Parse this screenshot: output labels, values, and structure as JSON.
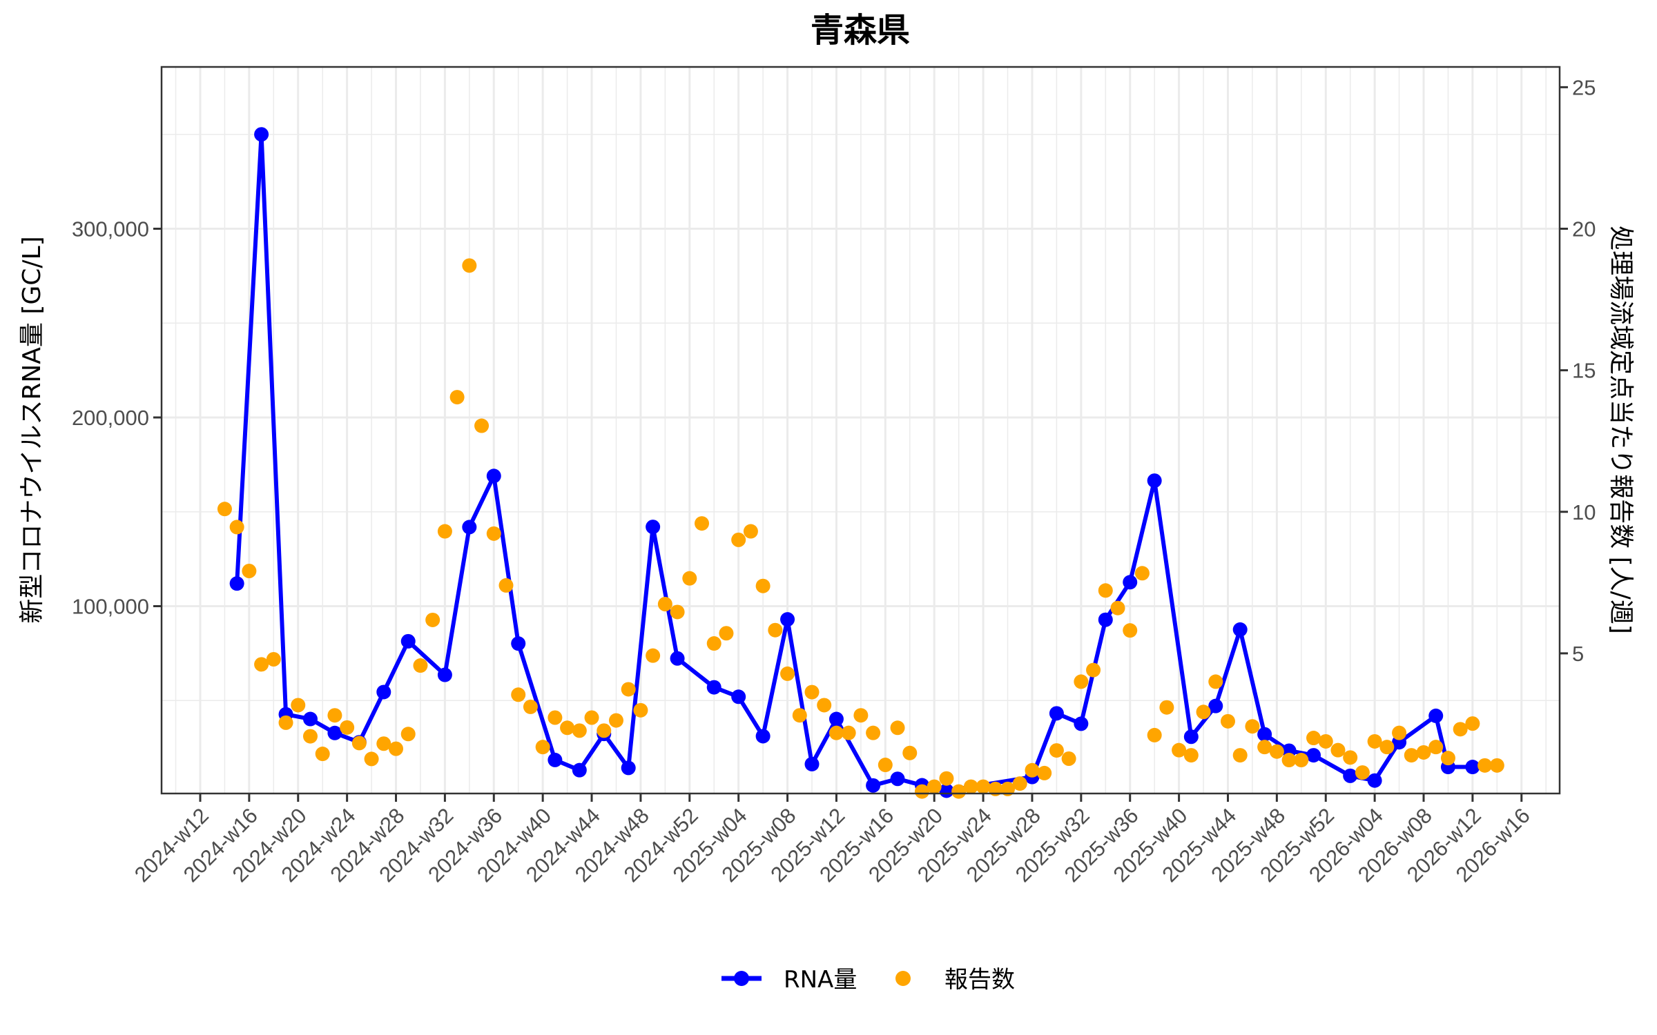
{
  "chart_data": {
    "type": "line",
    "title": "青森県",
    "xlabel": "",
    "ylabel": "新型コロナウイルスRNA量 [GC/L]",
    "ylabel_right": "処理場流域定点当たり報告数 [人/週]",
    "x_tick_labels": [
      "2024-w12",
      "2024-w16",
      "2024-w20",
      "2024-w24",
      "2024-w28",
      "2024-w32",
      "2024-w36",
      "2024-w40",
      "2024-w44",
      "2024-w48",
      "2024-w52",
      "2025-w04",
      "2025-w08",
      "2025-w12",
      "2025-w16",
      "2025-w20",
      "2025-w24",
      "2025-w28",
      "2025-w32",
      "2025-w36",
      "2025-w40",
      "2025-w44",
      "2025-w48",
      "2025-w52",
      "2026-w04",
      "2026-w08",
      "2026-w12",
      "2026-w16"
    ],
    "y_left_ticks": [
      {
        "value": 100000,
        "label": "100,000"
      },
      {
        "value": 200000,
        "label": "200,000"
      },
      {
        "value": 300000,
        "label": "300,000"
      }
    ],
    "y_right_ticks": [
      {
        "value": 5,
        "label": "5"
      },
      {
        "value": 10,
        "label": "10"
      },
      {
        "value": 15,
        "label": "15"
      },
      {
        "value": 20,
        "label": "20"
      },
      {
        "value": 25,
        "label": "25"
      }
    ],
    "secondary_axis_scale": 15000,
    "ylim_left": [
      0,
      385000
    ],
    "ylim_right": [
      0,
      25.7
    ],
    "grid": true,
    "legend_position": "bottom",
    "series": [
      {
        "name": "RNA量",
        "axis": "left",
        "type": "line+points",
        "color": "#0000FF",
        "points": [
          {
            "week": "2024-w15",
            "value": 112000
          },
          {
            "week": "2024-w17",
            "value": 350000
          },
          {
            "week": "2024-w19",
            "value": 42700
          },
          {
            "week": "2024-w21",
            "value": 40200
          },
          {
            "week": "2024-w23",
            "value": 32800
          },
          {
            "week": "2024-w25",
            "value": 27900
          },
          {
            "week": "2024-w27",
            "value": 54500
          },
          {
            "week": "2024-w29",
            "value": 81400
          },
          {
            "week": "2024-w32",
            "value": 63600
          },
          {
            "week": "2024-w34",
            "value": 141900
          },
          {
            "week": "2024-w36",
            "value": 169000
          },
          {
            "week": "2024-w38",
            "value": 80200
          },
          {
            "week": "2024-w41",
            "value": 18500
          },
          {
            "week": "2024-w43",
            "value": 13100
          },
          {
            "week": "2024-w45",
            "value": 32300
          },
          {
            "week": "2024-w47",
            "value": 14300
          },
          {
            "week": "2024-w49",
            "value": 142000
          },
          {
            "week": "2024-w51",
            "value": 72300
          },
          {
            "week": "2025-w02",
            "value": 57000
          },
          {
            "week": "2025-w04",
            "value": 52000
          },
          {
            "week": "2025-w06",
            "value": 31100
          },
          {
            "week": "2025-w08",
            "value": 93000
          },
          {
            "week": "2025-w10",
            "value": 16300
          },
          {
            "week": "2025-w12",
            "value": 40200
          },
          {
            "week": "2025-w15",
            "value": 5000
          },
          {
            "week": "2025-w17",
            "value": 8500
          },
          {
            "week": "2025-w19",
            "value": 5100
          },
          {
            "week": "2025-w21",
            "value": 2200
          },
          {
            "week": "2025-w28",
            "value": 9500
          },
          {
            "week": "2025-w30",
            "value": 43200
          },
          {
            "week": "2025-w32",
            "value": 37700
          },
          {
            "week": "2025-w34",
            "value": 92800
          },
          {
            "week": "2025-w36",
            "value": 112700
          },
          {
            "week": "2025-w38",
            "value": 166500
          },
          {
            "week": "2025-w41",
            "value": 30800
          },
          {
            "week": "2025-w43",
            "value": 47100
          },
          {
            "week": "2025-w45",
            "value": 87600
          },
          {
            "week": "2025-w47",
            "value": 32100
          },
          {
            "week": "2025-w49",
            "value": 23400
          },
          {
            "week": "2025-w51",
            "value": 21000
          },
          {
            "week": "2026-w02",
            "value": 10100
          },
          {
            "week": "2026-w04",
            "value": 7600
          },
          {
            "week": "2026-w06",
            "value": 27900
          },
          {
            "week": "2026-w09",
            "value": 41900
          },
          {
            "week": "2026-w10",
            "value": 14800
          },
          {
            "week": "2026-w12",
            "value": 14800
          }
        ]
      },
      {
        "name": "報告数",
        "axis": "right",
        "type": "points",
        "color": "#FFA500",
        "points": [
          {
            "week": "2024-w14",
            "value": 10.1
          },
          {
            "week": "2024-w15",
            "value": 9.46
          },
          {
            "week": "2024-w16",
            "value": 7.91
          },
          {
            "week": "2024-w17",
            "value": 4.61
          },
          {
            "week": "2024-w18",
            "value": 4.79
          },
          {
            "week": "2024-w19",
            "value": 2.55
          },
          {
            "week": "2024-w20",
            "value": 3.17
          },
          {
            "week": "2024-w21",
            "value": 2.07
          },
          {
            "week": "2024-w22",
            "value": 1.45
          },
          {
            "week": "2024-w23",
            "value": 2.81
          },
          {
            "week": "2024-w24",
            "value": 2.38
          },
          {
            "week": "2024-w25",
            "value": 1.83
          },
          {
            "week": "2024-w26",
            "value": 1.27
          },
          {
            "week": "2024-w27",
            "value": 1.81
          },
          {
            "week": "2024-w28",
            "value": 1.63
          },
          {
            "week": "2024-w29",
            "value": 2.15
          },
          {
            "week": "2024-w30",
            "value": 4.57
          },
          {
            "week": "2024-w31",
            "value": 6.18
          },
          {
            "week": "2024-w32",
            "value": 9.31
          },
          {
            "week": "2024-w33",
            "value": 14.05
          },
          {
            "week": "2024-w34",
            "value": 18.7
          },
          {
            "week": "2024-w35",
            "value": 13.04
          },
          {
            "week": "2024-w36",
            "value": 9.23
          },
          {
            "week": "2024-w37",
            "value": 7.4
          },
          {
            "week": "2024-w38",
            "value": 3.54
          },
          {
            "week": "2024-w39",
            "value": 3.11
          },
          {
            "week": "2024-w40",
            "value": 1.69
          },
          {
            "week": "2024-w41",
            "value": 2.73
          },
          {
            "week": "2024-w42",
            "value": 2.37
          },
          {
            "week": "2024-w43",
            "value": 2.27
          },
          {
            "week": "2024-w44",
            "value": 2.73
          },
          {
            "week": "2024-w45",
            "value": 2.27
          },
          {
            "week": "2024-w46",
            "value": 2.63
          },
          {
            "week": "2024-w47",
            "value": 3.73
          },
          {
            "week": "2024-w48",
            "value": 2.99
          },
          {
            "week": "2024-w49",
            "value": 4.92
          },
          {
            "week": "2024-w50",
            "value": 6.74
          },
          {
            "week": "2024-w51",
            "value": 6.46
          },
          {
            "week": "2024-w52",
            "value": 7.65
          },
          {
            "week": "2025-w01",
            "value": 9.59
          },
          {
            "week": "2025-w02",
            "value": 5.35
          },
          {
            "week": "2025-w03",
            "value": 5.71
          },
          {
            "week": "2025-w04",
            "value": 9.01
          },
          {
            "week": "2025-w05",
            "value": 9.31
          },
          {
            "week": "2025-w06",
            "value": 7.38
          },
          {
            "week": "2025-w07",
            "value": 5.82
          },
          {
            "week": "2025-w08",
            "value": 4.28
          },
          {
            "week": "2025-w09",
            "value": 2.81
          },
          {
            "week": "2025-w10",
            "value": 3.63
          },
          {
            "week": "2025-w11",
            "value": 3.17
          },
          {
            "week": "2025-w12",
            "value": 2.19
          },
          {
            "week": "2025-w13",
            "value": 2.19
          },
          {
            "week": "2025-w14",
            "value": 2.81
          },
          {
            "week": "2025-w15",
            "value": 2.19
          },
          {
            "week": "2025-w16",
            "value": 1.06
          },
          {
            "week": "2025-w17",
            "value": 2.37
          },
          {
            "week": "2025-w18",
            "value": 1.48
          },
          {
            "week": "2025-w19",
            "value": 0.12
          },
          {
            "week": "2025-w20",
            "value": 0.29
          },
          {
            "week": "2025-w21",
            "value": 0.58
          },
          {
            "week": "2025-w22",
            "value": 0.12
          },
          {
            "week": "2025-w23",
            "value": 0.29
          },
          {
            "week": "2025-w24",
            "value": 0.29
          },
          {
            "week": "2025-w25",
            "value": 0.21
          },
          {
            "week": "2025-w26",
            "value": 0.21
          },
          {
            "week": "2025-w27",
            "value": 0.4
          },
          {
            "week": "2025-w28",
            "value": 0.87
          },
          {
            "week": "2025-w29",
            "value": 0.77
          },
          {
            "week": "2025-w30",
            "value": 1.57
          },
          {
            "week": "2025-w31",
            "value": 1.28
          },
          {
            "week": "2025-w32",
            "value": 4.0
          },
          {
            "week": "2025-w33",
            "value": 4.41
          },
          {
            "week": "2025-w34",
            "value": 7.22
          },
          {
            "week": "2025-w35",
            "value": 6.6
          },
          {
            "week": "2025-w36",
            "value": 5.81
          },
          {
            "week": "2025-w37",
            "value": 7.83
          },
          {
            "week": "2025-w38",
            "value": 2.11
          },
          {
            "week": "2025-w39",
            "value": 3.09
          },
          {
            "week": "2025-w40",
            "value": 1.58
          },
          {
            "week": "2025-w41",
            "value": 1.4
          },
          {
            "week": "2025-w42",
            "value": 2.93
          },
          {
            "week": "2025-w43",
            "value": 4.0
          },
          {
            "week": "2025-w44",
            "value": 2.6
          },
          {
            "week": "2025-w45",
            "value": 1.4
          },
          {
            "week": "2025-w46",
            "value": 2.42
          },
          {
            "week": "2025-w47",
            "value": 1.69
          },
          {
            "week": "2025-w48",
            "value": 1.53
          },
          {
            "week": "2025-w49",
            "value": 1.23
          },
          {
            "week": "2025-w50",
            "value": 1.23
          },
          {
            "week": "2025-w51",
            "value": 2.01
          },
          {
            "week": "2025-w52",
            "value": 1.89
          },
          {
            "week": "2026-w01",
            "value": 1.58
          },
          {
            "week": "2026-w02",
            "value": 1.32
          },
          {
            "week": "2026-w03",
            "value": 0.79
          },
          {
            "week": "2026-w04",
            "value": 1.89
          },
          {
            "week": "2026-w05",
            "value": 1.69
          },
          {
            "week": "2026-w06",
            "value": 2.19
          },
          {
            "week": "2026-w07",
            "value": 1.4
          },
          {
            "week": "2026-w08",
            "value": 1.5
          },
          {
            "week": "2026-w09",
            "value": 1.69
          },
          {
            "week": "2026-w10",
            "value": 1.3
          },
          {
            "week": "2026-w11",
            "value": 2.32
          },
          {
            "week": "2026-w12",
            "value": 2.52
          },
          {
            "week": "2026-w13",
            "value": 1.04
          },
          {
            "week": "2026-w14",
            "value": 1.04
          }
        ]
      }
    ]
  },
  "legend": {
    "items": [
      {
        "label": "RNA量",
        "color": "#0000FF",
        "symbol": "line-with-dot"
      },
      {
        "label": "報告数",
        "color": "#FFA500",
        "symbol": "dot"
      }
    ]
  },
  "colors": {
    "rna": "#0000FF",
    "reports": "#FFA500",
    "grid": "#EBEBEB",
    "axis": "#333333",
    "tick_text": "#4D4D4D"
  }
}
